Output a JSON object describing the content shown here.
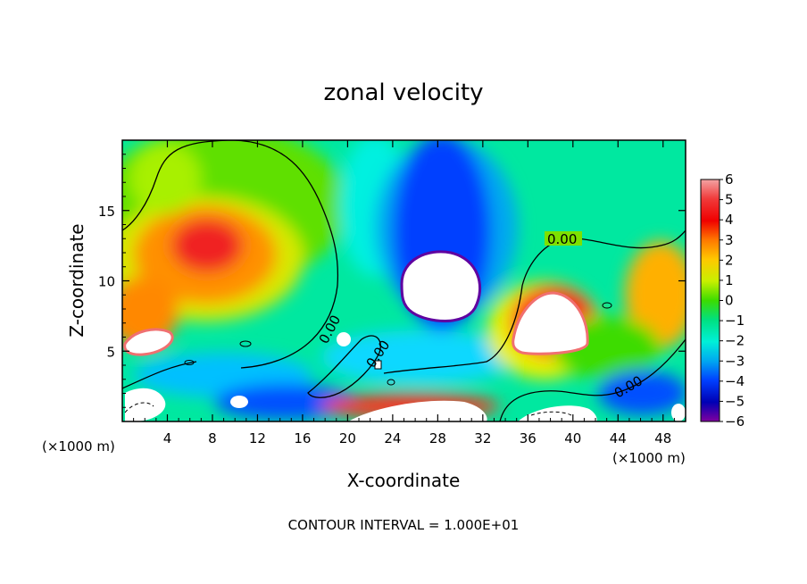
{
  "chart_data": {
    "type": "heatmap",
    "title": "zonal velocity",
    "xlabel": "X-coordinate",
    "ylabel": "Z-coordinate",
    "x_unit_left": "(×1000 m)",
    "x_unit_right": "(×1000 m)",
    "xlim": [
      0,
      50
    ],
    "ylim": [
      0,
      20
    ],
    "x_ticks": [
      4,
      8,
      12,
      16,
      20,
      24,
      28,
      32,
      36,
      40,
      44,
      48
    ],
    "y_ticks": [
      5,
      10,
      15
    ],
    "colorbar": {
      "min": -6,
      "max": 6,
      "ticks": [
        6,
        5,
        4,
        3,
        2,
        1,
        0,
        -1,
        -2,
        -3,
        -4,
        -5,
        -6
      ]
    },
    "contour_labels": [
      "0.00",
      "0.00",
      "0.00",
      "0.00"
    ],
    "footer": "CONTOUR INTERVAL = 1.000E+01"
  }
}
